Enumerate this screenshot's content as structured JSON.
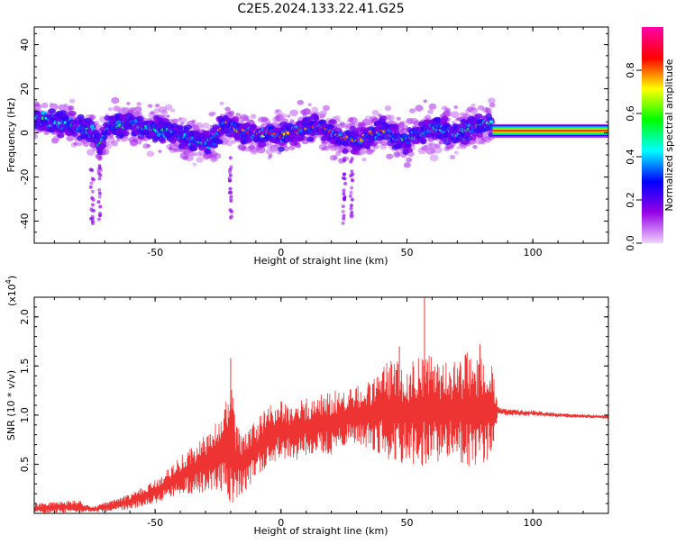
{
  "figure": {
    "title": "C2E5.2024.133.22.41.G25"
  },
  "chart_data": [
    {
      "type": "heatmap",
      "name": "spectrogram",
      "xlabel": "Height of straight line (km)",
      "ylabel": "Frequency (Hz)",
      "xlim": [
        -98,
        130
      ],
      "ylim": [
        -50,
        48
      ],
      "xticks": [
        -50,
        0,
        50,
        100
      ],
      "yticks": [
        -40,
        -20,
        0,
        20,
        40
      ],
      "ridge": {
        "x": [
          -98,
          -90,
          -80,
          -75,
          -72,
          -68,
          -65,
          -60,
          -55,
          -50,
          -45,
          -40,
          -35,
          -30,
          -27,
          -25,
          -22,
          -18,
          -15,
          -10,
          -5,
          0,
          5,
          10,
          15,
          20,
          22,
          25,
          28,
          30,
          35,
          40,
          45,
          50,
          55,
          60,
          65,
          70,
          75,
          80,
          84
        ],
        "y": [
          7,
          5,
          3,
          0,
          -6,
          5,
          3,
          5,
          2,
          2,
          1,
          -2,
          -3,
          -5,
          -3,
          0,
          4,
          2,
          0,
          0,
          0,
          -1,
          1,
          2,
          3,
          0,
          -1,
          -3,
          -3,
          -4,
          -1,
          1,
          -2,
          -3,
          0,
          2,
          1,
          0,
          2,
          3,
          5
        ]
      },
      "band": {
        "x_start": 84,
        "x_end": 130,
        "y_center": 1,
        "y_halfwidth": 3
      },
      "colorbar": {
        "label": "Normalized spectral amplitude",
        "range": [
          0,
          1
        ],
        "ticks": [
          "0.0",
          "0.2",
          "0.4",
          "0.6",
          "0.8"
        ],
        "colors": [
          "#f0d2ff",
          "#9600e6",
          "#0000ff",
          "#00ffff",
          "#00ff00",
          "#ffff00",
          "#ff0000",
          "#ff00aa"
        ]
      }
    },
    {
      "type": "line",
      "name": "snr",
      "xlabel": "Height of straight line (km)",
      "ylabel": "SNR (10 * v/v)",
      "yscale_label": "(x10",
      "yscale_exp": "4",
      "yscale_close": ")",
      "xlim": [
        -98,
        130
      ],
      "ylim": [
        0,
        2.2
      ],
      "xticks": [
        -50,
        0,
        50,
        100
      ],
      "yticks": [
        0.5,
        1.0,
        1.5,
        2.0
      ],
      "color": "#ee3333",
      "envelope": {
        "x": [
          -98,
          -90,
          -80,
          -75,
          -70,
          -60,
          -50,
          -45,
          -40,
          -35,
          -30,
          -25,
          -22,
          -20,
          -18,
          -15,
          -10,
          -5,
          0,
          5,
          10,
          15,
          20,
          25,
          30,
          35,
          40,
          45,
          50,
          55,
          60,
          65,
          70,
          75,
          80,
          84,
          86,
          90,
          100,
          110,
          120,
          130
        ],
        "mean": [
          0.05,
          0.06,
          0.07,
          0.04,
          0.06,
          0.12,
          0.22,
          0.3,
          0.38,
          0.45,
          0.5,
          0.6,
          0.62,
          0.7,
          0.55,
          0.5,
          0.65,
          0.8,
          0.85,
          0.82,
          0.88,
          0.9,
          0.92,
          0.95,
          1.0,
          1.0,
          1.05,
          1.05,
          1.02,
          1.05,
          1.05,
          1.05,
          1.05,
          1.05,
          1.05,
          1.05,
          1.04,
          1.03,
          1.02,
          1.0,
          0.99,
          0.98
        ],
        "amp": [
          0.05,
          0.06,
          0.06,
          0.03,
          0.05,
          0.08,
          0.12,
          0.15,
          0.2,
          0.25,
          0.3,
          0.35,
          0.5,
          0.7,
          0.4,
          0.3,
          0.3,
          0.3,
          0.3,
          0.3,
          0.3,
          0.3,
          0.35,
          0.3,
          0.3,
          0.35,
          0.45,
          0.55,
          0.5,
          0.6,
          0.55,
          0.5,
          0.55,
          0.6,
          0.6,
          0.45,
          0.05,
          0.03,
          0.03,
          0.02,
          0.02,
          0.02
        ]
      },
      "spikes": {
        "x": [
          -20,
          47,
          57,
          79
        ],
        "y": [
          1.58,
          1.7,
          2.2,
          1.72
        ]
      }
    }
  ]
}
